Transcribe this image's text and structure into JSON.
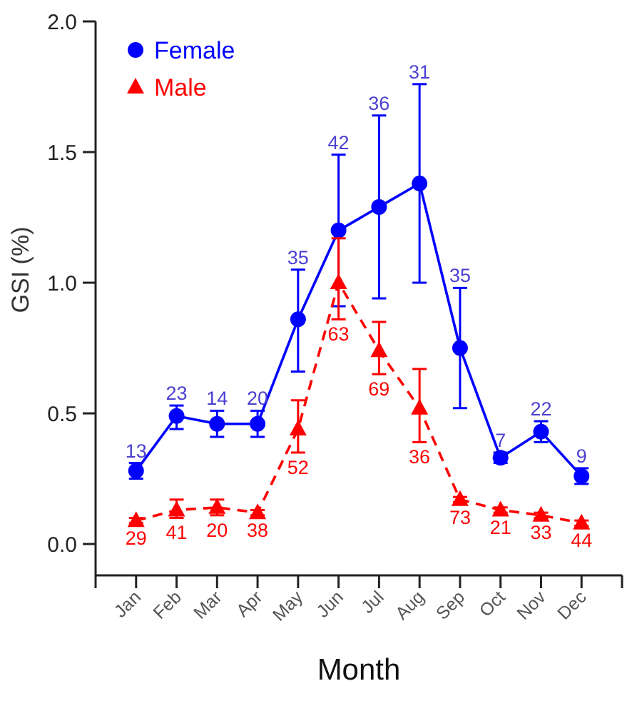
{
  "chart_data": {
    "type": "line",
    "xlabel": "Month",
    "ylabel": "GSI (%)",
    "categories": [
      "Jan",
      "Feb",
      "Mar",
      "Apr",
      "May",
      "Jun",
      "Jul",
      "Aug",
      "Sep",
      "Oct",
      "Nov",
      "Dec"
    ],
    "ylim": [
      -0.12,
      2.0
    ],
    "yticks": [
      {
        "value": 0,
        "label": "0.0"
      },
      0.5,
      {
        "value": 1,
        "label": "1.0"
      },
      1.5,
      {
        "value": 2,
        "label": "2.0"
      }
    ],
    "legend": "top left",
    "grid": false,
    "series": [
      {
        "name": "Female",
        "color": "#0000ff",
        "marker": "circle",
        "line_style": "solid",
        "values": [
          0.28,
          0.49,
          0.46,
          0.46,
          0.86,
          1.2,
          1.29,
          1.38,
          0.75,
          0.33,
          0.43,
          0.26
        ],
        "errors": [
          [
            0.25,
            0.31
          ],
          [
            0.44,
            0.53
          ],
          [
            0.41,
            0.51
          ],
          [
            0.41,
            0.51
          ],
          [
            0.66,
            1.05
          ],
          [
            0.91,
            1.49
          ],
          [
            0.94,
            1.64
          ],
          [
            1.0,
            1.76
          ],
          [
            0.52,
            0.98
          ],
          [
            0.31,
            0.35
          ],
          [
            0.39,
            0.47
          ],
          [
            0.23,
            0.29
          ]
        ]
      },
      {
        "name": "Male",
        "color": "#ff0000",
        "marker": "triangle",
        "line_style": "dashed",
        "values": [
          0.09,
          0.13,
          0.14,
          0.12,
          0.44,
          1.0,
          0.74,
          0.52,
          0.17,
          0.13,
          0.11,
          0.08
        ],
        "errors": [
          [
            0.08,
            0.1
          ],
          [
            0.1,
            0.17
          ],
          [
            0.11,
            0.17
          ],
          [
            0.11,
            0.13
          ],
          [
            0.35,
            0.55
          ],
          [
            0.86,
            1.17
          ],
          [
            0.65,
            0.85
          ],
          [
            0.39,
            0.67
          ],
          [
            0.16,
            0.18
          ],
          [
            0.12,
            0.14
          ],
          [
            0.1,
            0.12
          ],
          [
            0.07,
            0.09
          ]
        ]
      }
    ],
    "annotations": [
      {
        "text": "13",
        "x": "Jan",
        "y": 0.31
      },
      {
        "text": "23",
        "x": "Feb",
        "y": 0.53
      },
      {
        "text": "14",
        "x": "Mar",
        "y": 0.51
      },
      {
        "text": "20",
        "x": "Apr",
        "y": 0.51
      },
      {
        "text": "35",
        "x": "May",
        "y": 1.05
      },
      {
        "text": "42",
        "x": "Jun",
        "y": 1.49
      },
      {
        "text": "36",
        "x": "Jul",
        "y": 1.64
      },
      {
        "text": "31",
        "x": "Aug",
        "y": 1.76
      },
      {
        "text": "35",
        "x": "Sep",
        "y": 0.98
      },
      {
        "text": "7",
        "x": "Oct",
        "y": 0.35
      },
      {
        "text": "22",
        "x": "Nov",
        "y": 0.47
      },
      {
        "text": "9",
        "x": "Dec",
        "y": 0.29
      },
      {
        "text": "29",
        "x": "Jan",
        "y": 0.08
      },
      {
        "text": "41",
        "x": "Feb",
        "y": 0.1
      },
      {
        "text": "20",
        "x": "Mar",
        "y": 0.11
      },
      {
        "text": "38",
        "x": "Apr",
        "y": 0.11
      },
      {
        "text": "52",
        "x": "May",
        "y": 0.35
      },
      {
        "text": "63",
        "x": "Jun",
        "y": 0.86
      },
      {
        "text": "69",
        "x": "Jul",
        "y": 0.65
      },
      {
        "text": "36",
        "x": "Aug",
        "y": 0.39
      },
      {
        "text": "73",
        "x": "Sep",
        "y": 0.16
      },
      {
        "text": "21",
        "x": "Oct",
        "y": 0.12
      },
      {
        "text": "33",
        "x": "Nov",
        "y": 0.1
      },
      {
        "text": "44",
        "x": "Dec",
        "y": 0.07
      }
    ]
  }
}
